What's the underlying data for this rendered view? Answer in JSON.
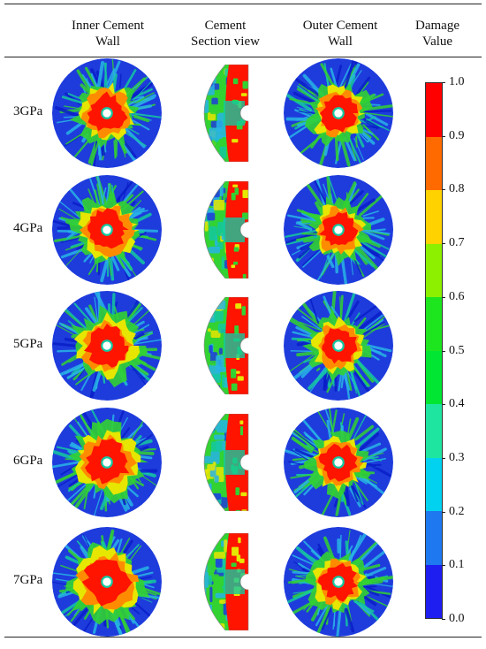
{
  "header": {
    "col1": [
      "Inner Cement",
      "Wall"
    ],
    "col2": [
      "Cement",
      "Section view"
    ],
    "col3": [
      "Outer Cement",
      "Wall"
    ],
    "col4": [
      "Damage",
      "Value"
    ]
  },
  "rows": [
    {
      "label": "3GPa"
    },
    {
      "label": "4GPa"
    },
    {
      "label": "5GPa"
    },
    {
      "label": "6GPa"
    },
    {
      "label": "7GPa"
    }
  ],
  "colorbar": {
    "ticks": [
      "1.0",
      "0.9",
      "0.8",
      "0.7",
      "0.6",
      "0.5",
      "0.4",
      "0.3",
      "0.2",
      "0.1",
      "0.0"
    ],
    "colors_top_to_bottom": [
      "#ff0000",
      "#ff6a00",
      "#ffd200",
      "#8cf000",
      "#1ee61e",
      "#00e632",
      "#1ee6a0",
      "#00d2f0",
      "#1e78f0",
      "#1e1ef0"
    ]
  },
  "palette": {
    "red": "#ff1400",
    "orange": "#ff8c00",
    "yellow": "#e6e600",
    "green": "#32d232",
    "teal": "#14c8a0",
    "cyan": "#28b4e6",
    "blue": "#1e3cdc",
    "deep_blue": "#0a1ec8"
  }
}
